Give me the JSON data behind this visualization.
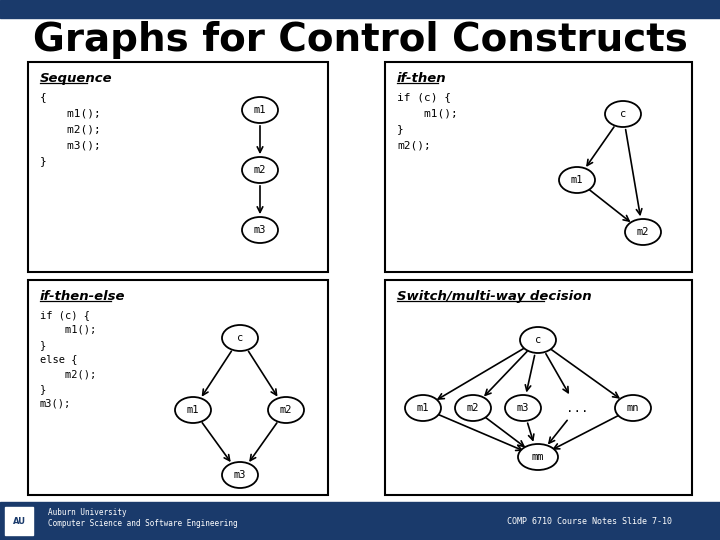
{
  "title": "Graphs for Control Constructs",
  "title_fontsize": 28,
  "bg_color": "#ffffff",
  "header_color": "#1a3a6b",
  "footer_color": "#1a3a6b",
  "footer_left": "Auburn University\nComputer Science and Software Engineering",
  "footer_right": "COMP 6710 Course Notes Slide 7-10",
  "seq_title": "Sequence",
  "seq_code": "{\n    m1();\n    m2();\n    m3();\n}",
  "ifthen_title": "if-then",
  "ifthen_code": "if (c) {\n    m1();\n}\nm2();",
  "ifthenelse_title": "if-then-else",
  "ifthenelse_code": "if (c) {\n    m1();\n}\nelse {\n    m2();\n}\nm3();",
  "switch_title": "Switch/multi-way decision",
  "node_color": "#ffffff",
  "node_edge": "#000000",
  "arrow_color": "#000000"
}
